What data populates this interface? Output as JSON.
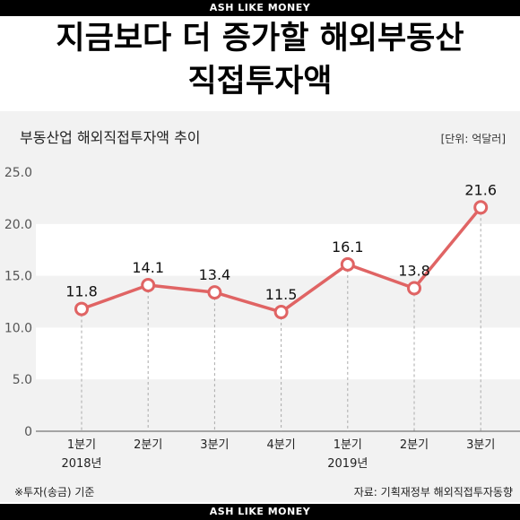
{
  "banner": {
    "top": "ASH LIKE MONEY",
    "bottom": "ASH LIKE MONEY"
  },
  "headline": {
    "line1": "지금보다 더 증가할 해외부동산",
    "line2": "직접투자액"
  },
  "footnote": "※투자(송금) 기준",
  "source": "자료: 기획재정부 해외직접투자동향",
  "colors": {
    "line": "#e06464",
    "band": "#ffffff",
    "panel": "#f2f2f2"
  },
  "chart_data": {
    "type": "line",
    "title": "부동산업 해외직접투자액 추이",
    "unit_label": "[단위: 억달러]",
    "categories": [
      "1분기",
      "2분기",
      "3분기",
      "4분기",
      "1분기",
      "2분기",
      "3분기"
    ],
    "year_labels": [
      "2018년",
      "",
      "",
      "",
      "2019년",
      "",
      ""
    ],
    "values": [
      11.8,
      14.1,
      13.4,
      11.5,
      16.1,
      13.8,
      21.6
    ],
    "data_labels": [
      "11.8",
      "14.1",
      "13.4",
      "11.5",
      "16.1",
      "13.8",
      "21.6"
    ],
    "yticks": [
      "25.0",
      "20.0",
      "15.0",
      "10.0",
      "5.0",
      "0"
    ],
    "ylim": [
      0,
      25
    ],
    "grid": "alternating-bands",
    "legend": "none"
  }
}
